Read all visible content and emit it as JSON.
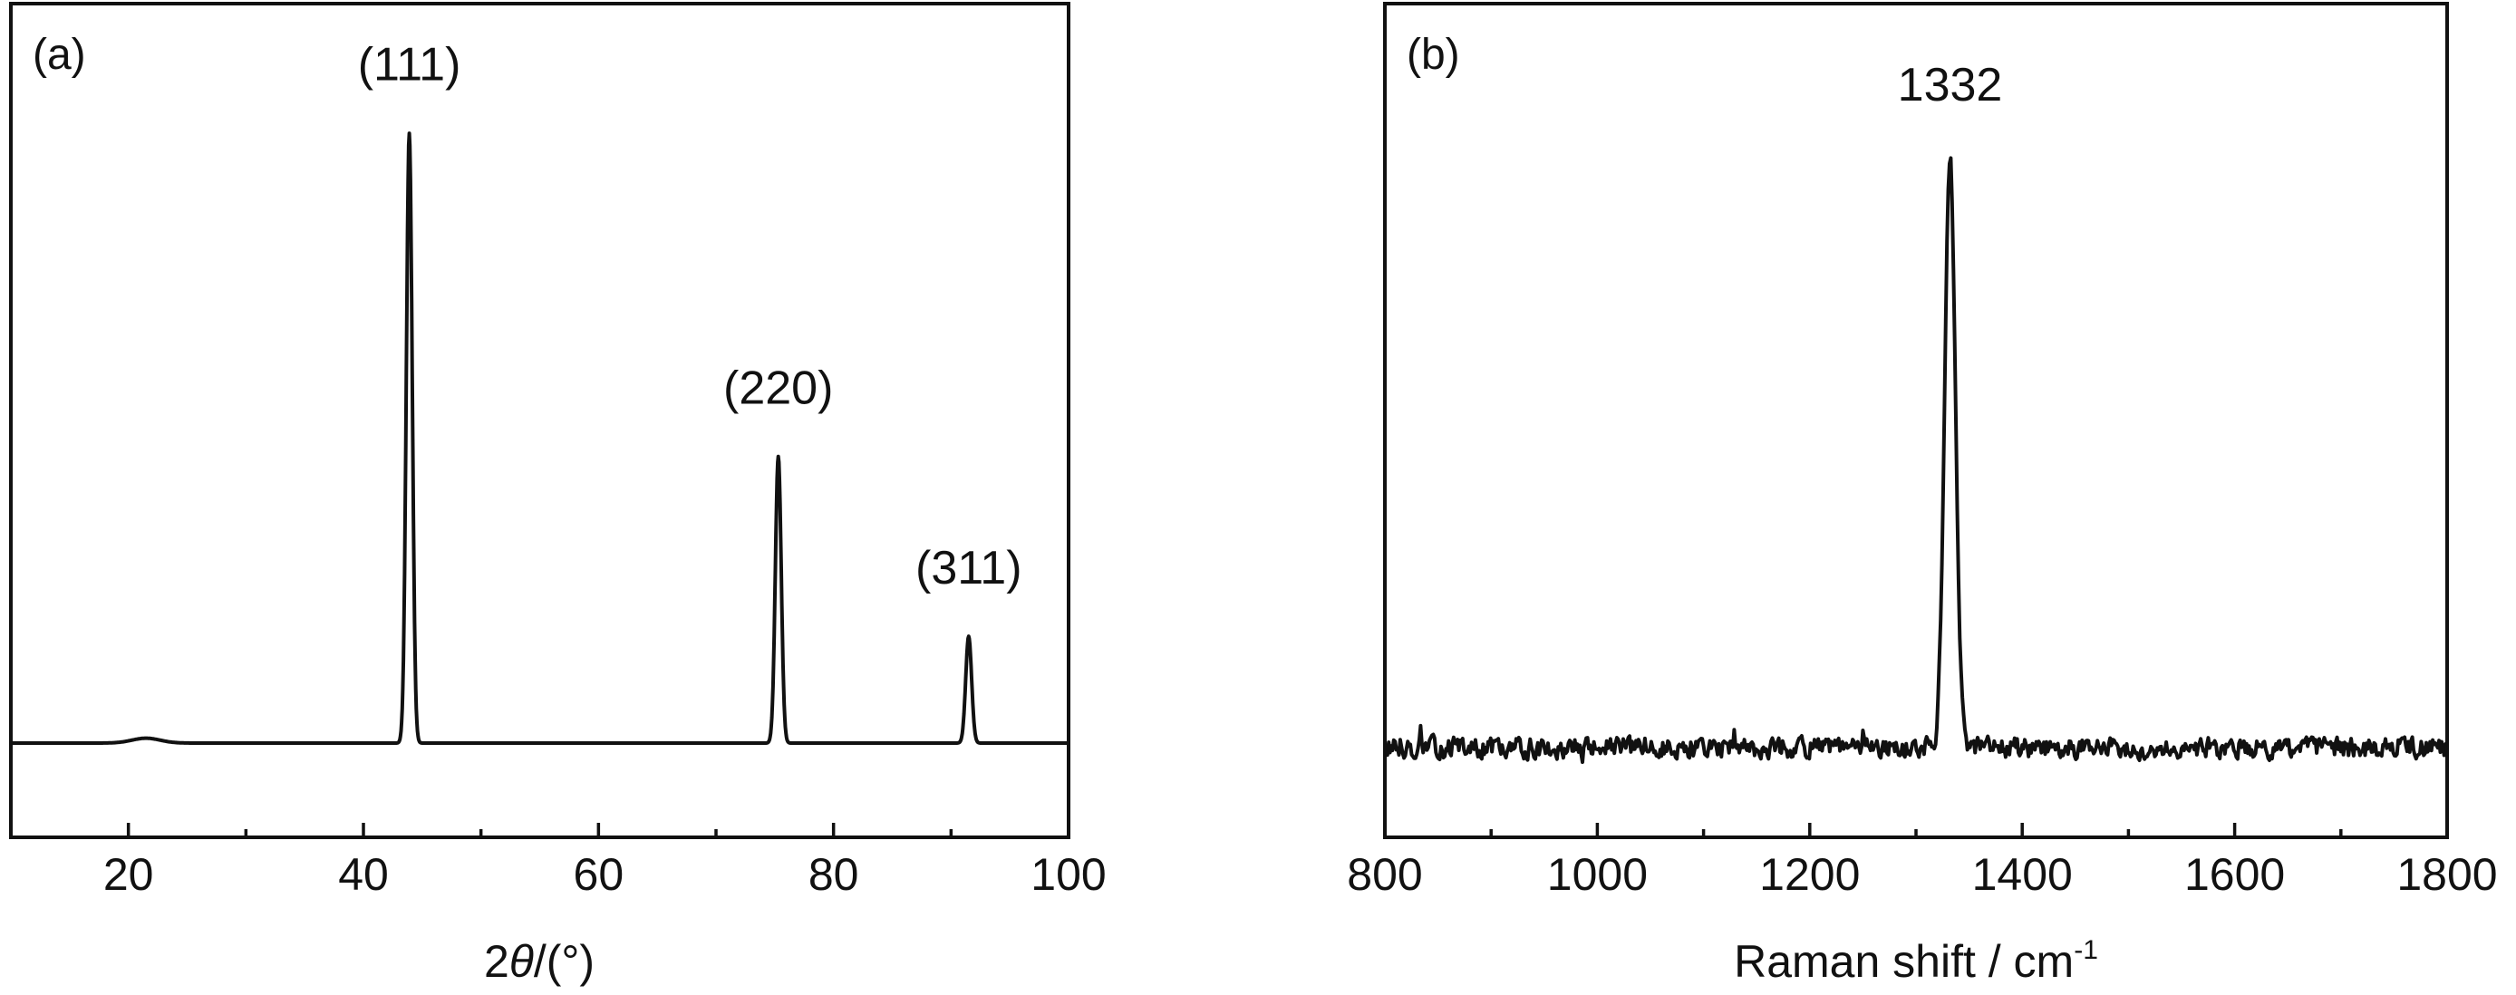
{
  "chart_data": [
    {
      "type": "line",
      "panel_label": "(a)",
      "xlabel_prefix": "2",
      "xlabel_symbol": "θ",
      "xlabel_suffix": "/(°)",
      "ylabel": "",
      "xlim": [
        10,
        100
      ],
      "ylim": [
        0,
        1.07
      ],
      "x_ticks": [
        20,
        40,
        60,
        80,
        100
      ],
      "x_minor_ticks": [
        30,
        50,
        70,
        90
      ],
      "y_ticks_shown": false,
      "grid": false,
      "baseline": 0.0,
      "peaks": [
        {
          "x": 43.9,
          "y": 1.0,
          "width": 0.25
        },
        {
          "x": 75.3,
          "y": 0.47,
          "width": 0.25
        },
        {
          "x": 91.5,
          "y": 0.175,
          "width": 0.25
        },
        {
          "x": 21.5,
          "y": 0.008,
          "width": 1.2
        }
      ],
      "annotations": [
        {
          "text": "(111)",
          "x": 43.9,
          "y": 1.06
        },
        {
          "text": "(220)",
          "x": 75.3,
          "y": 0.53
        },
        {
          "text": "(311)",
          "x": 91.5,
          "y": 0.235
        }
      ]
    },
    {
      "type": "line",
      "panel_label": "(b)",
      "xlabel_main": "Raman shift / cm",
      "xlabel_sup": "-1",
      "ylabel": "",
      "xlim": [
        800,
        1800
      ],
      "ylim": [
        0,
        1.0
      ],
      "x_ticks": [
        800,
        1000,
        1200,
        1400,
        1600,
        1800
      ],
      "x_minor_ticks": [
        900,
        1100,
        1300,
        1500,
        1700
      ],
      "y_ticks_shown": false,
      "grid": false,
      "baseline": 0.12,
      "noise_amplitude": 0.012,
      "peaks": [
        {
          "x": 1332,
          "y": 0.92,
          "width": 5
        }
      ],
      "annotations": [
        {
          "text": "1332",
          "x": 1332,
          "y": 0.965
        }
      ]
    }
  ]
}
